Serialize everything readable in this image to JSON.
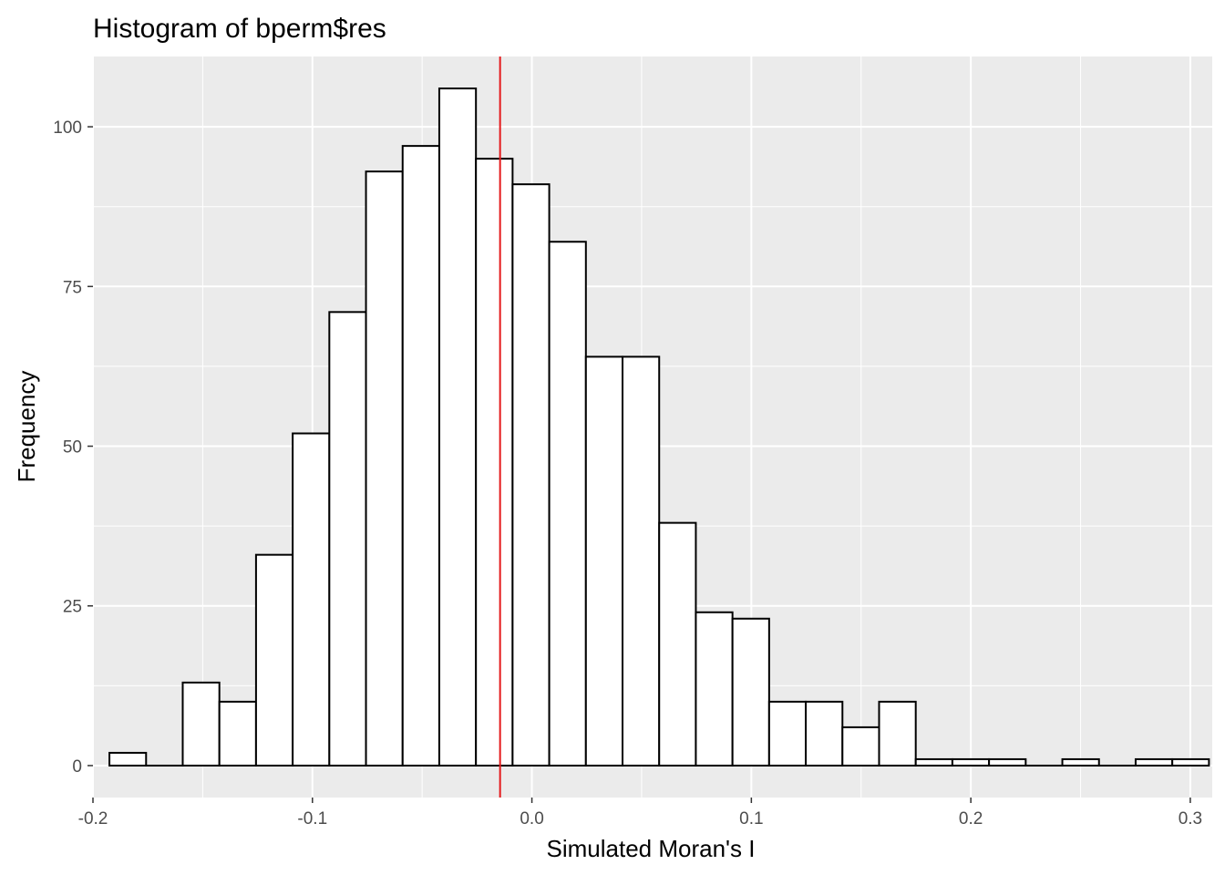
{
  "chart_data": {
    "type": "bar",
    "subtype": "histogram",
    "title": "Histogram of bperm$res",
    "xlabel": "Simulated Moran's I",
    "ylabel": "Frequency",
    "xlim": [
      -0.2,
      0.31
    ],
    "ylim": [
      -5,
      111
    ],
    "x_ticks": [
      -0.2,
      -0.1,
      0.0,
      0.1,
      0.2,
      0.3
    ],
    "x_tick_labels": [
      "-0.2",
      "-0.1",
      "0.0",
      "0.1",
      "0.2",
      "0.3"
    ],
    "y_ticks": [
      0,
      25,
      50,
      75,
      100
    ],
    "y_tick_labels": [
      "0",
      "25",
      "50",
      "75",
      "100"
    ],
    "bins": [
      {
        "x0": -0.1925,
        "x1": -0.1758,
        "count": 2
      },
      {
        "x0": -0.1758,
        "x1": -0.1591,
        "count": 0
      },
      {
        "x0": -0.1591,
        "x1": -0.1424,
        "count": 13
      },
      {
        "x0": -0.1424,
        "x1": -0.1257,
        "count": 10
      },
      {
        "x0": -0.1257,
        "x1": -0.109,
        "count": 33
      },
      {
        "x0": -0.109,
        "x1": -0.0923,
        "count": 52
      },
      {
        "x0": -0.0923,
        "x1": -0.0756,
        "count": 71
      },
      {
        "x0": -0.0756,
        "x1": -0.0589,
        "count": 93
      },
      {
        "x0": -0.0589,
        "x1": -0.0422,
        "count": 97
      },
      {
        "x0": -0.0422,
        "x1": -0.0255,
        "count": 106
      },
      {
        "x0": -0.0255,
        "x1": -0.0088,
        "count": 95
      },
      {
        "x0": -0.0088,
        "x1": 0.0079,
        "count": 91
      },
      {
        "x0": 0.0079,
        "x1": 0.0246,
        "count": 82
      },
      {
        "x0": 0.0246,
        "x1": 0.0413,
        "count": 64
      },
      {
        "x0": 0.0413,
        "x1": 0.058,
        "count": 64
      },
      {
        "x0": 0.058,
        "x1": 0.0747,
        "count": 38
      },
      {
        "x0": 0.0747,
        "x1": 0.0914,
        "count": 24
      },
      {
        "x0": 0.0914,
        "x1": 0.1081,
        "count": 23
      },
      {
        "x0": 0.1081,
        "x1": 0.1248,
        "count": 10
      },
      {
        "x0": 0.1248,
        "x1": 0.1415,
        "count": 10
      },
      {
        "x0": 0.1415,
        "x1": 0.1582,
        "count": 6
      },
      {
        "x0": 0.1582,
        "x1": 0.1749,
        "count": 10
      },
      {
        "x0": 0.1749,
        "x1": 0.1916,
        "count": 1
      },
      {
        "x0": 0.1916,
        "x1": 0.2083,
        "count": 1
      },
      {
        "x0": 0.2083,
        "x1": 0.225,
        "count": 1
      },
      {
        "x0": 0.225,
        "x1": 0.2417,
        "count": 0
      },
      {
        "x0": 0.2417,
        "x1": 0.2584,
        "count": 1
      },
      {
        "x0": 0.2584,
        "x1": 0.2751,
        "count": 0
      },
      {
        "x0": 0.2751,
        "x1": 0.2918,
        "count": 1
      },
      {
        "x0": 0.2918,
        "x1": 0.3085,
        "count": 1
      }
    ],
    "vline": {
      "x": -0.0145,
      "color": "#e41a1c"
    },
    "panel_background": "#ebebeb",
    "grid": true,
    "bar_fill": "#ffffff",
    "bar_stroke": "#000000"
  }
}
